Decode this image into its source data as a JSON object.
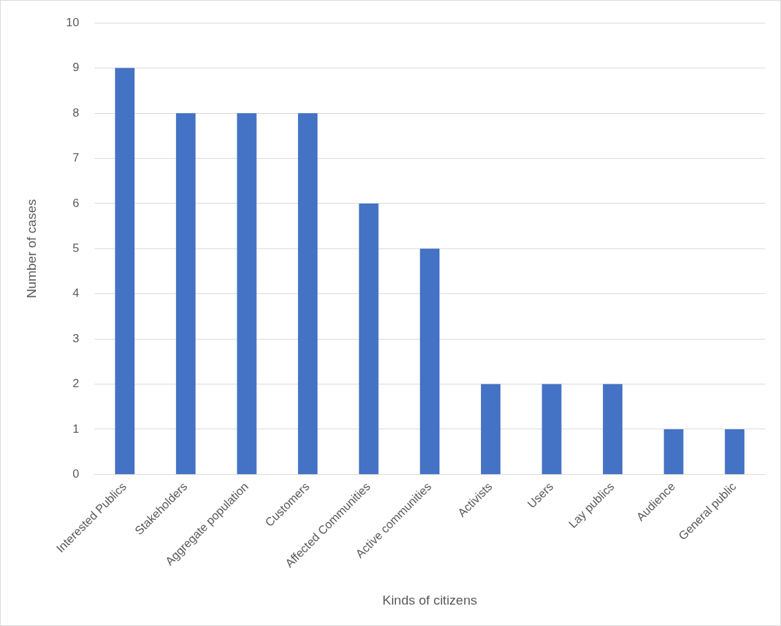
{
  "chart_data": {
    "type": "bar",
    "xlabel": "Kinds of citizens",
    "ylabel": "Number of cases",
    "categories": [
      "Interested Publics",
      "Stakeholders",
      "Aggregate population",
      "Customers",
      "Affected Communities",
      "Active communities",
      "Activists",
      "Users",
      "Lay publics",
      "Audience",
      "General public"
    ],
    "values": [
      9,
      8,
      8,
      8,
      6,
      5,
      2,
      2,
      2,
      1,
      1
    ],
    "color": "#4472c4",
    "ylim": [
      0,
      10
    ],
    "yticks": [
      0,
      1,
      2,
      3,
      4,
      5,
      6,
      7,
      8,
      9,
      10
    ],
    "grid": "y",
    "legend": false
  }
}
